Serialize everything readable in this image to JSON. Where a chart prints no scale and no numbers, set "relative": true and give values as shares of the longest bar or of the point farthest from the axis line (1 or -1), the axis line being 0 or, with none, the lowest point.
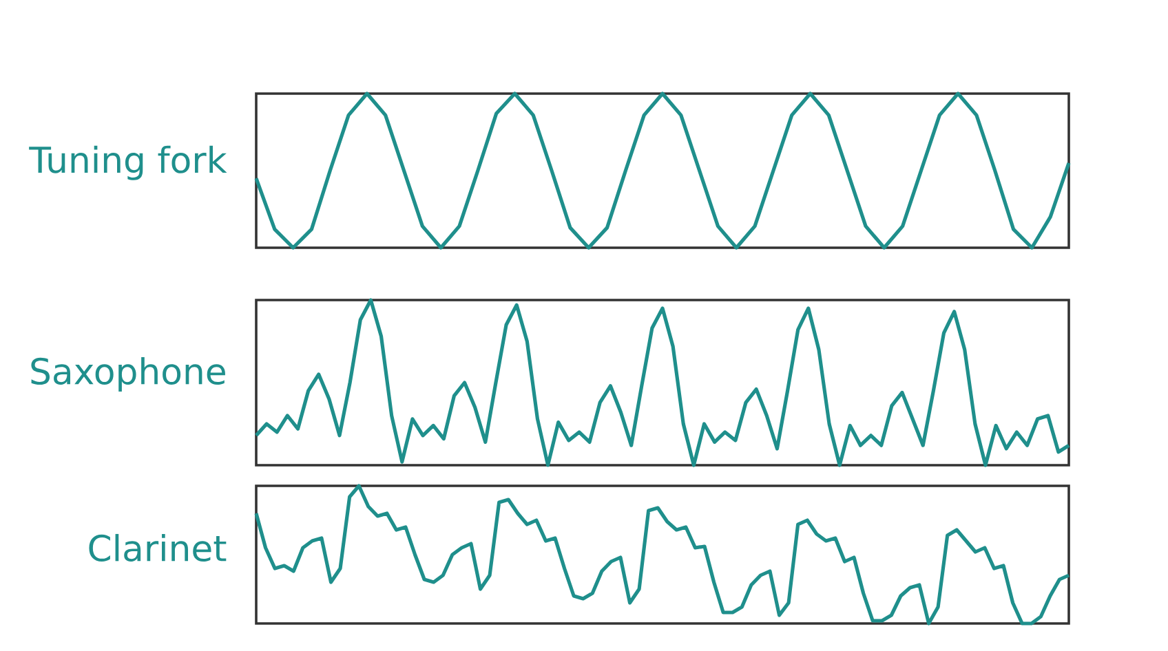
{
  "chart_data": [
    {
      "type": "line",
      "relative": true,
      "ylabel": "Tuning fork",
      "color": "#1f8f8c",
      "categories": [
        null,
        null,
        null,
        null,
        null,
        null,
        null,
        null,
        null,
        null,
        null,
        null,
        null,
        null,
        null,
        null,
        null,
        null,
        null,
        null,
        null,
        null,
        null,
        null,
        null,
        null,
        null,
        null,
        null,
        null,
        null,
        null,
        null,
        null,
        null,
        null,
        null,
        null,
        null,
        null,
        null,
        null,
        null,
        null,
        null
      ],
      "values": [
        0.45,
        0.12,
        0.0,
        0.12,
        0.5,
        0.86,
        1.0,
        0.86,
        0.5,
        0.14,
        0.0,
        0.14,
        0.5,
        0.87,
        1.0,
        0.86,
        0.5,
        0.13,
        0.0,
        0.13,
        0.5,
        0.86,
        1.0,
        0.86,
        0.5,
        0.14,
        0.0,
        0.14,
        0.5,
        0.86,
        1.0,
        0.86,
        0.5,
        0.14,
        0.0,
        0.14,
        0.5,
        0.86,
        1.0,
        0.86,
        0.5,
        0.12,
        0.0,
        0.2,
        0.55
      ]
    },
    {
      "type": "line",
      "relative": true,
      "ylabel": "Saxophone",
      "color": "#1f8f8c",
      "categories": [
        null,
        null,
        null,
        null,
        null,
        null,
        null,
        null,
        null,
        null,
        null,
        null,
        null,
        null,
        null,
        null,
        null,
        null,
        null,
        null,
        null,
        null,
        null,
        null,
        null,
        null,
        null,
        null,
        null,
        null,
        null,
        null,
        null,
        null,
        null,
        null,
        null,
        null,
        null,
        null,
        null,
        null,
        null,
        null,
        null,
        null,
        null,
        null,
        null,
        null,
        null,
        null,
        null,
        null,
        null,
        null,
        null,
        null,
        null,
        null,
        null,
        null,
        null,
        null,
        null,
        null,
        null,
        null,
        null,
        null,
        null,
        null,
        null,
        null,
        null,
        null,
        null,
        null,
        null
      ],
      "values": [
        0.18,
        0.25,
        0.2,
        0.3,
        0.22,
        0.45,
        0.55,
        0.4,
        0.18,
        0.5,
        0.88,
        1.0,
        0.78,
        0.3,
        0.02,
        0.28,
        0.18,
        0.24,
        0.16,
        0.42,
        0.5,
        0.35,
        0.14,
        0.5,
        0.85,
        0.97,
        0.75,
        0.28,
        0.0,
        0.26,
        0.15,
        0.2,
        0.14,
        0.38,
        0.48,
        0.32,
        0.12,
        0.48,
        0.83,
        0.95,
        0.72,
        0.25,
        0.0,
        0.25,
        0.14,
        0.2,
        0.15,
        0.38,
        0.46,
        0.3,
        0.1,
        0.45,
        0.82,
        0.95,
        0.7,
        0.25,
        0.0,
        0.24,
        0.12,
        0.18,
        0.12,
        0.36,
        0.44,
        0.28,
        0.12,
        0.45,
        0.8,
        0.93,
        0.7,
        0.25,
        0.0,
        0.24,
        0.1,
        0.2,
        0.12,
        0.28,
        0.3,
        0.08,
        0.12
      ]
    },
    {
      "type": "line",
      "relative": true,
      "ylabel": "Clarinet",
      "color": "#1f8f8c",
      "categories": [
        null,
        null,
        null,
        null,
        null,
        null,
        null,
        null,
        null,
        null,
        null,
        null,
        null,
        null,
        null,
        null,
        null,
        null,
        null,
        null,
        null,
        null,
        null,
        null,
        null,
        null,
        null,
        null,
        null,
        null,
        null,
        null,
        null,
        null,
        null,
        null,
        null,
        null,
        null,
        null,
        null,
        null,
        null,
        null,
        null,
        null,
        null,
        null,
        null,
        null,
        null,
        null,
        null,
        null,
        null,
        null,
        null,
        null,
        null,
        null,
        null,
        null,
        null,
        null,
        null,
        null,
        null,
        null,
        null,
        null,
        null,
        null,
        null,
        null,
        null,
        null,
        null,
        null,
        null,
        null,
        null,
        null,
        null,
        null,
        null,
        null,
        null,
        null
      ],
      "values": [
        0.8,
        0.55,
        0.4,
        0.42,
        0.38,
        0.55,
        0.6,
        0.62,
        0.3,
        0.4,
        0.92,
        1.0,
        0.85,
        0.78,
        0.8,
        0.68,
        0.7,
        0.5,
        0.32,
        0.3,
        0.35,
        0.5,
        0.55,
        0.58,
        0.25,
        0.35,
        0.88,
        0.9,
        0.8,
        0.72,
        0.75,
        0.6,
        0.62,
        0.4,
        0.2,
        0.18,
        0.22,
        0.38,
        0.45,
        0.48,
        0.15,
        0.25,
        0.82,
        0.84,
        0.74,
        0.68,
        0.7,
        0.55,
        0.56,
        0.3,
        0.08,
        0.08,
        0.12,
        0.28,
        0.35,
        0.38,
        0.06,
        0.15,
        0.72,
        0.75,
        0.65,
        0.6,
        0.62,
        0.45,
        0.48,
        0.22,
        0.02,
        0.02,
        0.06,
        0.2,
        0.26,
        0.28,
        0.0,
        0.12,
        0.64,
        0.68,
        0.6,
        0.52,
        0.55,
        0.4,
        0.42,
        0.15,
        0.0,
        0.0,
        0.05,
        0.2,
        0.32,
        0.35
      ]
    }
  ]
}
